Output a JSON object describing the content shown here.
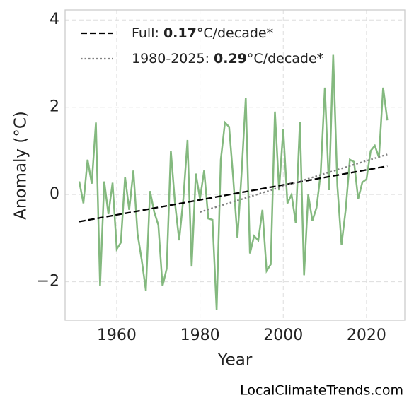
{
  "chart_data": {
    "type": "line",
    "xlabel": "Year",
    "ylabel": "Anomaly (°C)",
    "source": "LocalClimateTrends.com",
    "xlim": [
      1947.6,
      2029.2
    ],
    "ylim": [
      -2.88,
      4.23
    ],
    "xticks": [
      1960,
      1980,
      2000,
      2020
    ],
    "yticks": [
      {
        "value": -2,
        "label": "−2"
      },
      0,
      2,
      4
    ],
    "grid": true,
    "legend": "upper left",
    "series": [
      {
        "name": "Anomaly",
        "legend": false,
        "color": "#84b97f",
        "style": "solid",
        "x": [
          1951,
          1952,
          1953,
          1954,
          1955,
          1956,
          1957,
          1958,
          1959,
          1960,
          1961,
          1962,
          1963,
          1964,
          1965,
          1966,
          1967,
          1968,
          1969,
          1970,
          1971,
          1972,
          1973,
          1974,
          1975,
          1976,
          1977,
          1978,
          1979,
          1980,
          1981,
          1982,
          1983,
          1984,
          1985,
          1986,
          1987,
          1988,
          1989,
          1990,
          1991,
          1992,
          1993,
          1994,
          1995,
          1996,
          1997,
          1998,
          1999,
          2000,
          2001,
          2002,
          2003,
          2004,
          2005,
          2006,
          2007,
          2008,
          2009,
          2010,
          2011,
          2012,
          2013,
          2014,
          2015,
          2016,
          2017,
          2018,
          2019,
          2020,
          2021,
          2022,
          2023,
          2024,
          2025
        ],
        "values": [
          0.3,
          -0.2,
          0.8,
          0.25,
          1.65,
          -2.1,
          0.3,
          -0.45,
          0.27,
          -1.25,
          -1.1,
          0.4,
          -0.35,
          0.55,
          -0.9,
          -1.5,
          -2.2,
          0.08,
          -0.4,
          -0.7,
          -2.1,
          -1.7,
          1.0,
          -0.2,
          -1.05,
          -0.1,
          1.25,
          -1.65,
          0.48,
          -0.1,
          0.55,
          -0.55,
          -0.58,
          -2.65,
          0.8,
          1.65,
          1.55,
          0.35,
          -1.0,
          0.5,
          2.22,
          -1.35,
          -0.95,
          -1.05,
          -0.35,
          -1.75,
          -1.6,
          1.9,
          0.1,
          1.5,
          -0.2,
          0.0,
          -0.65,
          1.67,
          -1.85,
          0.0,
          -0.6,
          -0.3,
          0.5,
          2.45,
          0.1,
          3.2,
          0.2,
          -1.15,
          -0.35,
          0.8,
          0.75,
          -0.1,
          0.28,
          0.35,
          1.0,
          1.12,
          0.85,
          2.45,
          1.7
        ]
      },
      {
        "name": [
          "Full: ",
          "0.17",
          "°C/decade*"
        ],
        "name_bold": 1,
        "color": "#000000",
        "style": "dashed",
        "x": [
          1951,
          2025
        ],
        "values": [
          -0.62,
          0.65
        ]
      },
      {
        "name": [
          "1980-2025: ",
          "0.29",
          "°C/decade*"
        ],
        "name_bold": 1,
        "color": "#808080",
        "style": "dotted",
        "x": [
          1980,
          2025
        ],
        "values": [
          -0.4,
          0.92
        ]
      }
    ]
  }
}
